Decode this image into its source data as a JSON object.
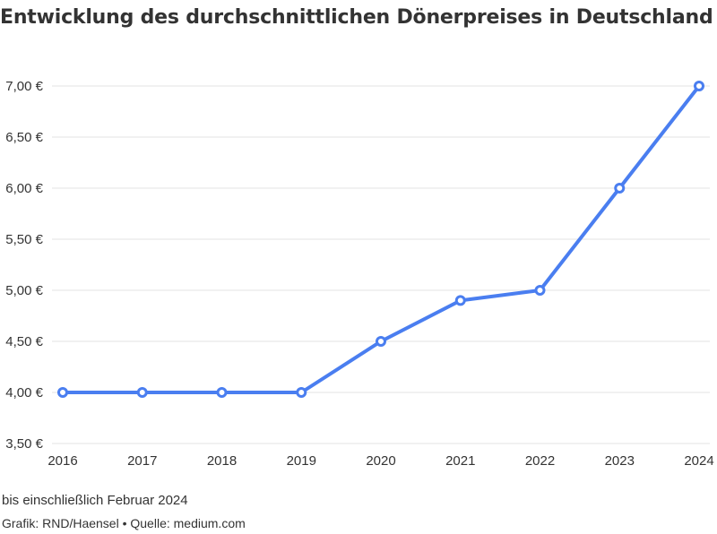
{
  "chart_data": {
    "type": "line",
    "title": "Entwicklung des durchschnittlichen Dönerpreises in Deutschland",
    "x": [
      "2016",
      "2017",
      "2018",
      "2019",
      "2020",
      "2021",
      "2022",
      "2023",
      "2024"
    ],
    "series": [
      {
        "values": [
          4.0,
          4.0,
          4.0,
          4.0,
          4.5,
          4.9,
          5.0,
          6.0,
          7.0
        ]
      }
    ],
    "yticks": [
      3.5,
      4.0,
      4.5,
      5.0,
      5.5,
      6.0,
      6.5,
      7.0
    ],
    "ytick_labels": [
      "3,50 €",
      "4,00 €",
      "4,50 €",
      "5,00 €",
      "5,50 €",
      "6,00 €",
      "6,50 €",
      "7,00 €"
    ],
    "ylim": [
      3.5,
      7.0
    ],
    "grid": true,
    "line_color": "#4a7ef0"
  },
  "notes": {
    "subtitle_note": "bis einschließlich Februar 2024",
    "credit": "Grafik: RND/Haensel • Quelle: medium.com"
  }
}
